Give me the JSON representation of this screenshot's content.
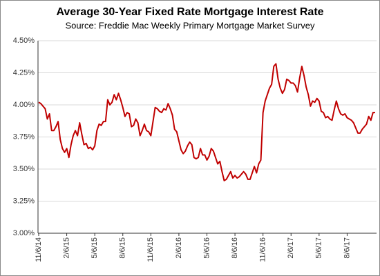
{
  "chart_data": {
    "type": "line",
    "title": "Average 30-Year Fixed Rate Mortgage Interest Rate",
    "subtitle": "Source: Freddie Mac Weekly Primary Mortgage Market Survey",
    "color": "#c00000",
    "grid": true,
    "ylim": [
      3.0,
      4.5
    ],
    "yticks": [
      {
        "value": 3.0,
        "label": "3.00%"
      },
      {
        "value": 3.25,
        "label": "3.25%"
      },
      {
        "value": 3.5,
        "label": "3.50%"
      },
      {
        "value": 3.75,
        "label": "3.75%"
      },
      {
        "value": 4.0,
        "label": "4.00%"
      },
      {
        "value": 4.25,
        "label": "4.25%"
      },
      {
        "value": 4.5,
        "label": "4.50%"
      }
    ],
    "categories": [
      "11/6/14",
      null,
      null,
      null,
      null,
      null,
      null,
      null,
      null,
      null,
      null,
      null,
      null,
      "2/6/15",
      null,
      null,
      null,
      null,
      null,
      null,
      null,
      null,
      null,
      null,
      null,
      null,
      "5/6/15",
      null,
      null,
      null,
      null,
      null,
      null,
      null,
      null,
      null,
      null,
      null,
      null,
      "8/6/15",
      null,
      null,
      null,
      null,
      null,
      null,
      null,
      null,
      null,
      null,
      null,
      null,
      "11/6/15",
      null,
      null,
      null,
      null,
      null,
      null,
      null,
      null,
      null,
      null,
      null,
      null,
      "2/6/16",
      null,
      null,
      null,
      null,
      null,
      null,
      null,
      null,
      null,
      null,
      null,
      null,
      "5/6/16",
      null,
      null,
      null,
      null,
      null,
      null,
      null,
      null,
      null,
      null,
      null,
      null,
      "8/6/16",
      null,
      null,
      null,
      null,
      null,
      null,
      null,
      null,
      null,
      null,
      null,
      null,
      "11/6/16",
      null,
      null,
      null,
      null,
      null,
      null,
      null,
      null,
      null,
      null,
      null,
      null,
      "2/6/17",
      null,
      null,
      null,
      null,
      null,
      null,
      null,
      null,
      null,
      null,
      null,
      null,
      "5/6/17",
      null,
      null,
      null,
      null,
      null,
      null,
      null,
      null,
      null,
      null,
      null,
      null,
      "8/6/17",
      null,
      null,
      null,
      null,
      null,
      null,
      null,
      null,
      null,
      null,
      null,
      null,
      null
    ],
    "values": [
      4.02,
      4.01,
      3.99,
      3.97,
      3.89,
      3.93,
      3.8,
      3.8,
      3.83,
      3.87,
      3.73,
      3.66,
      3.63,
      3.66,
      3.59,
      3.69,
      3.76,
      3.8,
      3.76,
      3.86,
      3.77,
      3.69,
      3.7,
      3.66,
      3.67,
      3.65,
      3.68,
      3.8,
      3.85,
      3.84,
      3.87,
      3.87,
      4.04,
      4.0,
      4.02,
      4.08,
      4.04,
      4.09,
      4.04,
      3.98,
      3.91,
      3.94,
      3.93,
      3.83,
      3.84,
      3.89,
      3.86,
      3.76,
      3.8,
      3.85,
      3.8,
      3.79,
      3.76,
      3.87,
      3.98,
      3.97,
      3.95,
      3.94,
      3.97,
      3.96,
      4.01,
      3.97,
      3.92,
      3.81,
      3.79,
      3.72,
      3.65,
      3.62,
      3.64,
      3.68,
      3.71,
      3.69,
      3.59,
      3.58,
      3.59,
      3.66,
      3.61,
      3.61,
      3.57,
      3.6,
      3.66,
      3.64,
      3.59,
      3.54,
      3.56,
      3.48,
      3.41,
      3.42,
      3.45,
      3.48,
      3.43,
      3.45,
      3.43,
      3.44,
      3.46,
      3.48,
      3.46,
      3.42,
      3.42,
      3.47,
      3.52,
      3.47,
      3.54,
      3.57,
      3.94,
      4.03,
      4.08,
      4.13,
      4.16,
      4.3,
      4.32,
      4.2,
      4.13,
      4.09,
      4.12,
      4.2,
      4.19,
      4.17,
      4.17,
      4.15,
      4.1,
      4.21,
      4.3,
      4.23,
      4.14,
      4.08,
      3.99,
      4.03,
      4.02,
      4.05,
      4.03,
      3.95,
      3.94,
      3.9,
      3.91,
      3.89,
      3.88,
      3.96,
      4.03,
      3.97,
      3.93,
      3.92,
      3.93,
      3.9,
      3.89,
      3.88,
      3.86,
      3.82,
      3.78,
      3.78,
      3.81,
      3.83,
      3.85,
      3.91,
      3.88,
      3.94,
      3.94
    ]
  }
}
